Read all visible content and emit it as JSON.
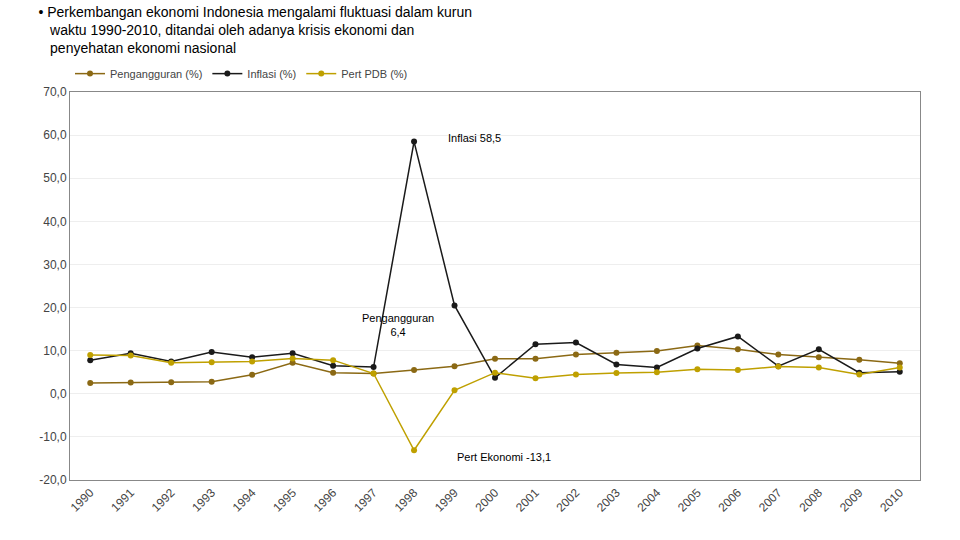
{
  "chart_data": {
    "type": "line",
    "title": "• Perkembangan ekonomi Indonesia mengalami fluktuasi dalam kurun\n   waktu 1990-2010, ditandai oleh adanya krisis ekonomi dan\n   penyehatan ekonomi nasional",
    "x": [
      1990,
      1991,
      1992,
      1993,
      1994,
      1995,
      1996,
      1997,
      1998,
      1999,
      2000,
      2001,
      2002,
      2003,
      2004,
      2005,
      2006,
      2007,
      2008,
      2009,
      2010
    ],
    "series": [
      {
        "name": "Pengangguran (%)",
        "color": "#8B6914",
        "marker": "circle",
        "values": [
          2.5,
          2.6,
          2.7,
          2.8,
          4.4,
          7.2,
          4.9,
          4.7,
          5.5,
          6.4,
          8.1,
          8.1,
          9.1,
          9.5,
          9.9,
          11.2,
          10.3,
          9.1,
          8.5,
          7.9,
          7.1
        ]
      },
      {
        "name": "Inflasi (%)",
        "color": "#1a1a1a",
        "marker": "circle",
        "values": [
          7.8,
          9.4,
          7.5,
          9.7,
          8.5,
          9.4,
          6.5,
          6.2,
          58.5,
          20.5,
          3.7,
          11.5,
          11.9,
          6.8,
          6.1,
          10.5,
          13.3,
          6.4,
          10.3,
          4.9,
          5.1
        ]
      },
      {
        "name": "Pert PDB (%)",
        "color": "#BFA000",
        "marker": "circle",
        "values": [
          9.0,
          8.9,
          7.2,
          7.3,
          7.5,
          8.2,
          7.8,
          4.7,
          -13.1,
          0.8,
          4.9,
          3.6,
          4.5,
          4.8,
          5.0,
          5.7,
          5.5,
          6.3,
          6.1,
          4.5,
          6.1
        ]
      }
    ],
    "annotations": [
      {
        "text": "Inflasi 58,5",
        "x": 1998.8,
        "y": 57.5
      },
      {
        "text": "Pengangguran\n6,4",
        "x": 1997.6,
        "y": 12.5
      },
      {
        "text": "Pert Ekonomi -13,1",
        "x": 1999.0,
        "y": -16.5
      }
    ],
    "xlim": [
      1989.5,
      2010.5
    ],
    "xticks": [
      1990,
      1991,
      1992,
      1993,
      1994,
      1995,
      1996,
      1997,
      1998,
      1999,
      2000,
      2001,
      2002,
      2003,
      2004,
      2005,
      2006,
      2007,
      2008,
      2009,
      2010
    ],
    "ylim": [
      -20,
      70
    ],
    "yticks": [
      {
        "value": -20,
        "label": "-20,0"
      },
      {
        "value": -10,
        "label": "-10,0"
      },
      {
        "value": 0,
        "label": "0,0"
      },
      {
        "value": 10,
        "label": "10,0"
      },
      {
        "value": 20,
        "label": "20,0"
      },
      {
        "value": 30,
        "label": "30,0"
      },
      {
        "value": 40,
        "label": "40,0"
      },
      {
        "value": 50,
        "label": "50,0"
      },
      {
        "value": 60,
        "label": "60,0"
      },
      {
        "value": 70,
        "label": "70,0"
      }
    ],
    "grid": "y",
    "legend": "top"
  }
}
